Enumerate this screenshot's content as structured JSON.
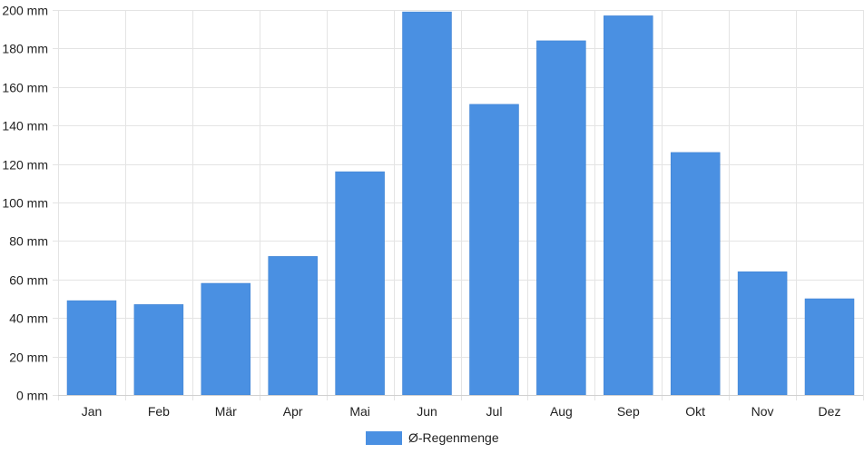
{
  "chart_data": {
    "type": "bar",
    "categories": [
      "Jan",
      "Feb",
      "Mär",
      "Apr",
      "Mai",
      "Jun",
      "Jul",
      "Aug",
      "Sep",
      "Okt",
      "Nov",
      "Dez"
    ],
    "series": [
      {
        "name": "Ø-Regenmenge",
        "values": [
          49,
          47,
          58,
          72,
          116,
          199,
          151,
          184,
          197,
          126,
          64,
          50
        ],
        "color": "#4a90e2"
      }
    ],
    "ylim": [
      0,
      200
    ],
    "yticks": [
      "0 mm",
      "20 mm",
      "40 mm",
      "60 mm",
      "80 mm",
      "100 mm",
      "120 mm",
      "140 mm",
      "160 mm",
      "180 mm",
      "200 mm"
    ],
    "grid": true,
    "legend_position": "bottom"
  }
}
